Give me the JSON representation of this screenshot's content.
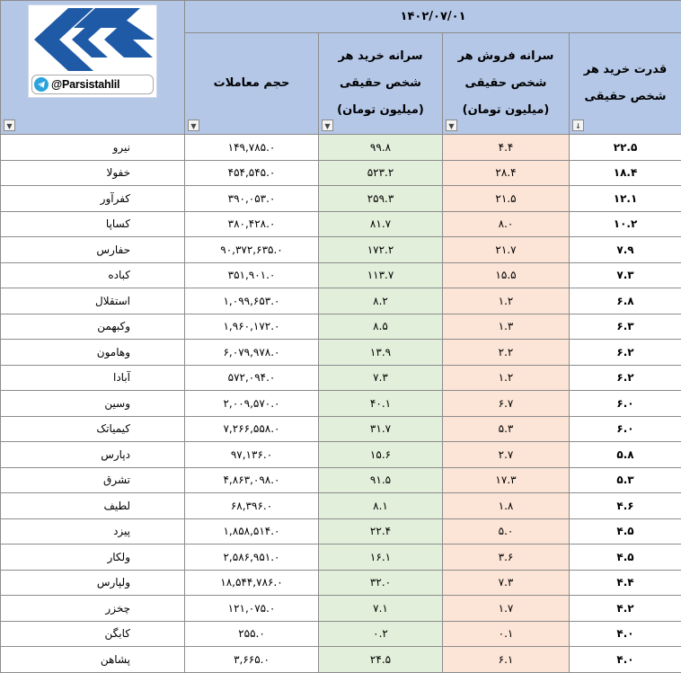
{
  "brand": {
    "handle": "@Parsistahlil"
  },
  "date": "۱۴۰۲/۰۷/۰۱",
  "headers": {
    "power": "قدرت خرید هر شخص حقیقی",
    "sell_per_capita": "سرانه فروش هر شخص حقیقی (میلیون تومان)",
    "buy_per_capita": "سرانه خرید هر شخص حقیقی (میلیون تومان)",
    "volume": "حجم معاملات"
  },
  "colors": {
    "header": "#b4c7e7",
    "buy": "#e2efda",
    "sell": "#fce4d6",
    "logo": "#1f5aa6"
  },
  "rows": [
    {
      "name": "نیرو",
      "volume": "۱۴۹,۷۸۵.۰",
      "buy": "۹۹.۸",
      "sell": "۴.۴",
      "power": "۲۲.۵"
    },
    {
      "name": "خفولا",
      "volume": "۴۵۴,۵۴۵.۰",
      "buy": "۵۲۳.۲",
      "sell": "۲۸.۴",
      "power": "۱۸.۴"
    },
    {
      "name": "کفرآور",
      "volume": "۳۹۰,۰۵۳.۰",
      "buy": "۲۵۹.۳",
      "sell": "۲۱.۵",
      "power": "۱۲.۱"
    },
    {
      "name": "کساپا",
      "volume": "۳۸۰,۴۲۸.۰",
      "buy": "۸۱.۷",
      "sell": "۸.۰",
      "power": "۱۰.۲"
    },
    {
      "name": "حفارس",
      "volume": "۹۰,۳۷۲,۶۳۵.۰",
      "buy": "۱۷۲.۲",
      "sell": "۲۱.۷",
      "power": "۷.۹"
    },
    {
      "name": "کباده",
      "volume": "۳۵۱,۹۰۱.۰",
      "buy": "۱۱۳.۷",
      "sell": "۱۵.۵",
      "power": "۷.۳"
    },
    {
      "name": "استقلال",
      "volume": "۱,۰۹۹,۶۵۳.۰",
      "buy": "۸.۲",
      "sell": "۱.۲",
      "power": "۶.۸"
    },
    {
      "name": "وکبهمن",
      "volume": "۱,۹۶۰,۱۷۲.۰",
      "buy": "۸.۵",
      "sell": "۱.۳",
      "power": "۶.۳"
    },
    {
      "name": "وهامون",
      "volume": "۶,۰۷۹,۹۷۸.۰",
      "buy": "۱۳.۹",
      "sell": "۲.۲",
      "power": "۶.۲"
    },
    {
      "name": "آبادا",
      "volume": "۵۷۲,۰۹۴.۰",
      "buy": "۷.۳",
      "sell": "۱.۲",
      "power": "۶.۲"
    },
    {
      "name": "وسین",
      "volume": "۲,۰۰۹,۵۷۰.۰",
      "buy": "۴۰.۱",
      "sell": "۶.۷",
      "power": "۶.۰"
    },
    {
      "name": "کیمیاتک",
      "volume": "۷,۲۶۶,۵۵۸.۰",
      "buy": "۳۱.۷",
      "sell": "۵.۳",
      "power": "۶.۰"
    },
    {
      "name": "دپارس",
      "volume": "۹۷,۱۳۶.۰",
      "buy": "۱۵.۶",
      "sell": "۲.۷",
      "power": "۵.۸"
    },
    {
      "name": "تشرق",
      "volume": "۴,۸۶۳,۰۹۸.۰",
      "buy": "۹۱.۵",
      "sell": "۱۷.۳",
      "power": "۵.۳"
    },
    {
      "name": "لطیف",
      "volume": "۶۸,۳۹۶.۰",
      "buy": "۸.۱",
      "sell": "۱.۸",
      "power": "۴.۶"
    },
    {
      "name": "پیزد",
      "volume": "۱,۸۵۸,۵۱۴.۰",
      "buy": "۲۲.۴",
      "sell": "۵.۰",
      "power": "۴.۵"
    },
    {
      "name": "ولکار",
      "volume": "۲,۵۸۶,۹۵۱.۰",
      "buy": "۱۶.۱",
      "sell": "۳.۶",
      "power": "۴.۵"
    },
    {
      "name": "ولپارس",
      "volume": "۱۸,۵۴۴,۷۸۶.۰",
      "buy": "۳۲.۰",
      "sell": "۷.۳",
      "power": "۴.۴"
    },
    {
      "name": "چخزر",
      "volume": "۱۲۱,۰۷۵.۰",
      "buy": "۷.۱",
      "sell": "۱.۷",
      "power": "۴.۲"
    },
    {
      "name": "کابگن",
      "volume": "۲۵۵.۰",
      "buy": "۰.۲",
      "sell": "۰.۱",
      "power": "۴.۰"
    },
    {
      "name": "پشاهن",
      "volume": "۳,۶۶۵.۰",
      "buy": "۲۴.۵",
      "sell": "۶.۱",
      "power": "۴.۰"
    }
  ]
}
